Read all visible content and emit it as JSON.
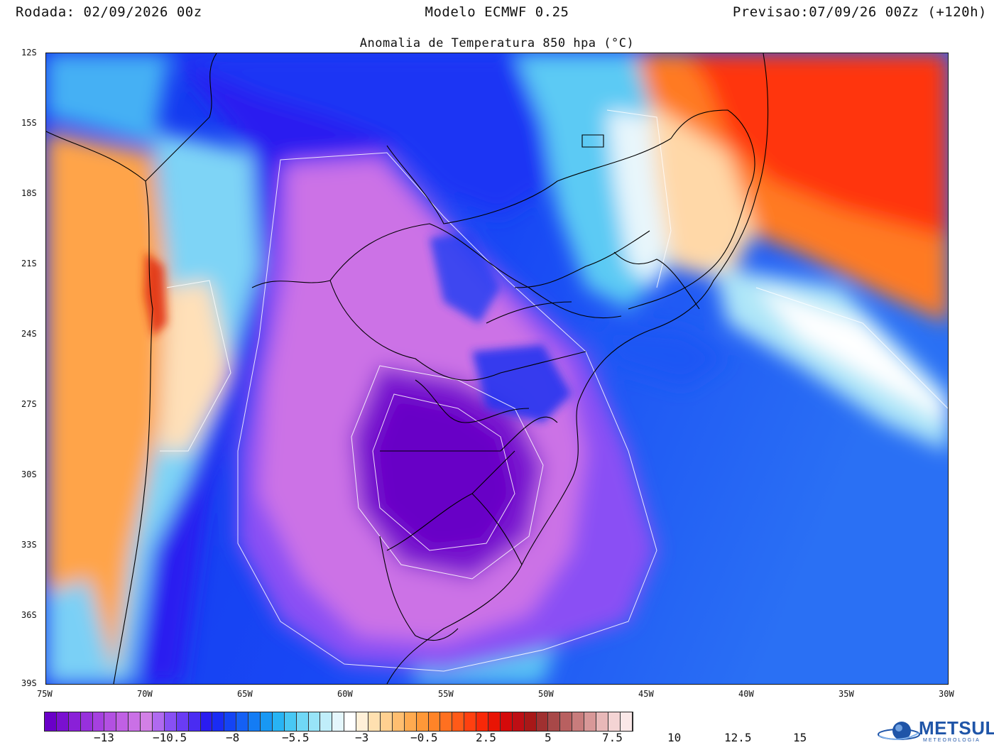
{
  "header": {
    "run": "Rodada: 02/09/2026 00z",
    "model": "Modelo ECMWF 0.25",
    "forecast": "Previsao:07/09/26 00Zz (+120h)"
  },
  "subtitle": "Anomalia de Temperatura 850 hpa (°C)",
  "map": {
    "lat_labels": [
      "12S",
      "15S",
      "18S",
      "21S",
      "24S",
      "27S",
      "30S",
      "33S",
      "36S",
      "39S"
    ],
    "lon_labels": [
      "75W",
      "70W",
      "65W",
      "60W",
      "55W",
      "50W",
      "45W",
      "40W",
      "35W",
      "30W"
    ],
    "extent": {
      "lon_min": -75,
      "lon_max": -30,
      "lat_min": -39,
      "lat_max": -12
    }
  },
  "colorbar": {
    "labels": [
      "−13",
      "−10.5",
      "−8",
      "−5.5",
      "−3",
      "−0.5",
      "2.5",
      "5",
      "7.5",
      "10",
      "12.5",
      "15"
    ],
    "colors": [
      "#6a00c8",
      "#7a10d0",
      "#8a20d8",
      "#9830dc",
      "#a640e0",
      "#b350e2",
      "#c060e4",
      "#ca70e6",
      "#d280e6",
      "#b06af0",
      "#8850f4",
      "#6a3cf4",
      "#4a2cf2",
      "#2a1cf0",
      "#1a2cf4",
      "#1444f4",
      "#1460f4",
      "#147cf4",
      "#1898f4",
      "#28b4f4",
      "#48c8f4",
      "#70d8f6",
      "#98e4f8",
      "#c0eefa",
      "#e4f6fc",
      "#ffffff",
      "#fff0d8",
      "#ffe0b0",
      "#ffd090",
      "#ffbe70",
      "#ffaa50",
      "#ff9838",
      "#ff8428",
      "#ff7020",
      "#ff5a18",
      "#ff4010",
      "#f82808",
      "#e81404",
      "#d40a0a",
      "#be0e14",
      "#a81818",
      "#a03030",
      "#a84848",
      "#b86060",
      "#c87c7c",
      "#d89898",
      "#e8b8b8",
      "#f4d4d4",
      "#fae8e8"
    ],
    "label_colors_note": "anomaly scale from purple (cold) through blue, white, orange to red (warm)"
  },
  "logo": {
    "name": "METSUL",
    "sub": "METEOROLOGIA"
  }
}
